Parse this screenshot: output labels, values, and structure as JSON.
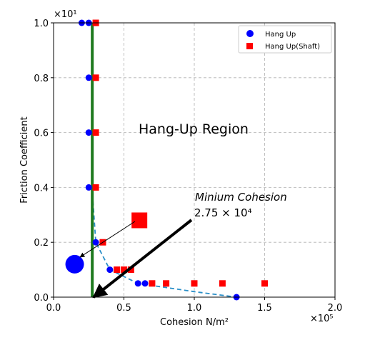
{
  "chart_data": {
    "type": "scatter",
    "title": "",
    "xlabel": "Cohesion N/m²",
    "ylabel": "Friction Coefficient",
    "x_multiplier_label": "×10⁵",
    "y_multiplier_label": "×10¹",
    "xlim": [
      0.0,
      2.0
    ],
    "ylim": [
      0.0,
      1.0
    ],
    "x_ticks": [
      "0.0",
      "0.5",
      "1.0",
      "1.5",
      "2.0"
    ],
    "y_ticks": [
      "0.0",
      "0.2",
      "0.4",
      "0.6",
      "0.8",
      "1.0"
    ],
    "grid": true,
    "legend_position": "top-right",
    "series": [
      {
        "name": "Hang Up",
        "marker": "circle",
        "color": "#0000ff",
        "points": [
          {
            "x": 0.2,
            "y": 1.0
          },
          {
            "x": 0.25,
            "y": 1.0
          },
          {
            "x": 0.25,
            "y": 0.8
          },
          {
            "x": 0.25,
            "y": 0.6
          },
          {
            "x": 0.25,
            "y": 0.4
          },
          {
            "x": 0.3,
            "y": 0.2
          },
          {
            "x": 0.4,
            "y": 0.1
          },
          {
            "x": 0.6,
            "y": 0.05
          },
          {
            "x": 0.65,
            "y": 0.05
          },
          {
            "x": 1.3,
            "y": 0.0
          }
        ]
      },
      {
        "name": "Hang Up(Shaft)",
        "marker": "square",
        "color": "#ff0000",
        "points": [
          {
            "x": 0.3,
            "y": 1.0
          },
          {
            "x": 0.3,
            "y": 0.8
          },
          {
            "x": 0.3,
            "y": 0.6
          },
          {
            "x": 0.3,
            "y": 0.4
          },
          {
            "x": 0.35,
            "y": 0.2
          },
          {
            "x": 0.45,
            "y": 0.1
          },
          {
            "x": 0.5,
            "y": 0.1
          },
          {
            "x": 0.55,
            "y": 0.1
          },
          {
            "x": 0.7,
            "y": 0.05
          },
          {
            "x": 0.8,
            "y": 0.05
          },
          {
            "x": 1.0,
            "y": 0.05
          },
          {
            "x": 1.2,
            "y": 0.05
          },
          {
            "x": 1.5,
            "y": 0.05
          }
        ]
      }
    ],
    "trend_line": {
      "color": "#2a8fc8",
      "points": [
        {
          "x": 0.28,
          "y": 0.35
        },
        {
          "x": 0.3,
          "y": 0.2
        },
        {
          "x": 0.4,
          "y": 0.1
        },
        {
          "x": 0.6,
          "y": 0.05
        },
        {
          "x": 1.0,
          "y": 0.02
        },
        {
          "x": 1.3,
          "y": 0.0
        }
      ]
    },
    "vertical_line": {
      "x": 0.275,
      "color": "#1e7a1e"
    },
    "large_markers": [
      {
        "marker": "circle",
        "color": "#0000ff",
        "x": 0.15,
        "y": 0.12
      },
      {
        "marker": "square",
        "color": "#ff0000",
        "x": 0.61,
        "y": 0.28
      }
    ],
    "annotations": {
      "region_label": "Hang-Up Region",
      "min_cohesion_label": "Minium Cohesion",
      "min_cohesion_value": "2.75 × 10⁴"
    }
  }
}
